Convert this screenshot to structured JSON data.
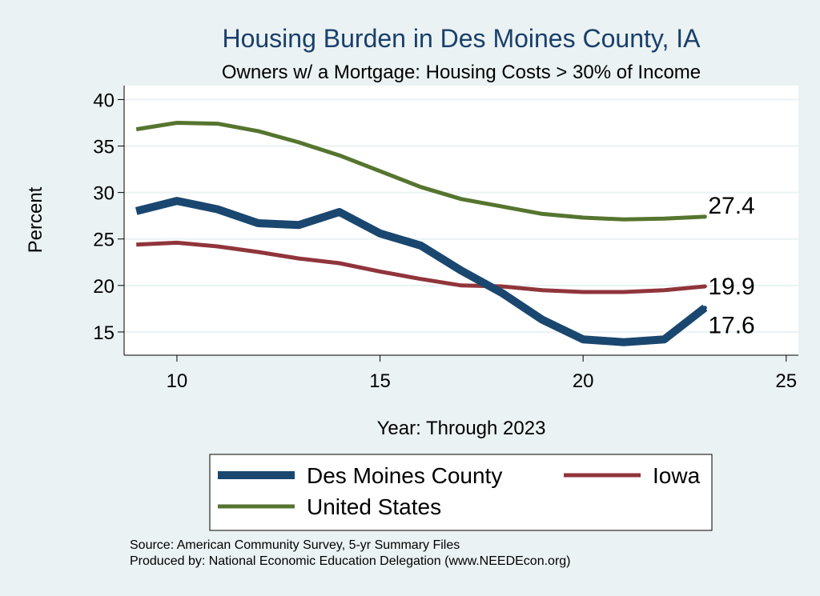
{
  "chart_data": {
    "type": "line",
    "title": "Housing Burden in Des Moines County, IA",
    "subtitle": "Owners w/ a Mortgage: Housing Costs > 30% of Income",
    "xlabel": "Year: Through 2023",
    "ylabel": "Percent",
    "xlim": [
      8.7,
      25.3
    ],
    "ylim": [
      12.5,
      41.5
    ],
    "xticks": [
      10,
      15,
      20,
      25
    ],
    "yticks": [
      15,
      20,
      25,
      30,
      35,
      40
    ],
    "grid": true,
    "legend_position": "bottom",
    "x": [
      9,
      10,
      11,
      12,
      13,
      14,
      15,
      16,
      17,
      18,
      19,
      20,
      21,
      22,
      23
    ],
    "series": [
      {
        "name": "Des Moines County",
        "color": "#1a476f",
        "values": [
          28.0,
          29.1,
          28.2,
          26.7,
          26.5,
          27.9,
          25.6,
          24.3,
          21.6,
          19.2,
          16.3,
          14.2,
          13.9,
          14.2,
          17.6
        ],
        "end_label": "17.6"
      },
      {
        "name": "Iowa",
        "color": "#90353b",
        "values": [
          24.4,
          24.6,
          24.2,
          23.6,
          22.9,
          22.4,
          21.5,
          20.7,
          20.0,
          19.9,
          19.5,
          19.3,
          19.3,
          19.5,
          19.9
        ],
        "end_label": "19.9"
      },
      {
        "name": "United States",
        "color": "#55752f",
        "values": [
          36.8,
          37.5,
          37.4,
          36.6,
          35.4,
          34.0,
          32.3,
          30.6,
          29.3,
          28.5,
          27.7,
          27.3,
          27.1,
          27.2,
          27.4
        ],
        "end_label": "27.4"
      }
    ]
  },
  "footer": {
    "source": "Source: American Community Survey, 5-yr Summary Files",
    "produced_by": "Produced by: National Economic Education Delegation (www.NEEDEcon.org)"
  }
}
